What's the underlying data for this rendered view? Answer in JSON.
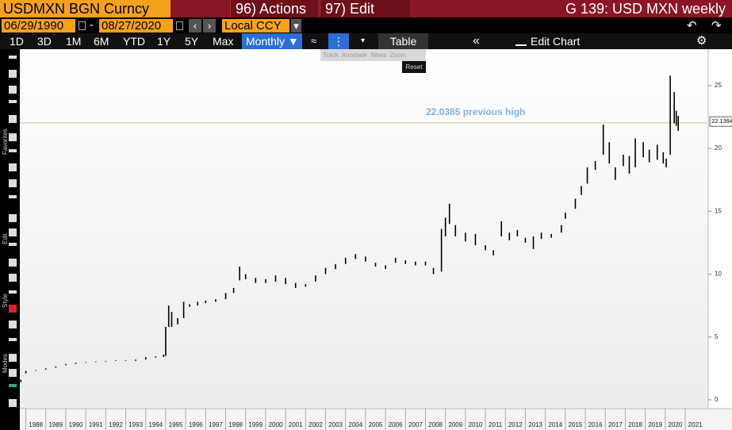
{
  "header": {
    "ticker": "USDMXN BGN Curncy",
    "actions": "96) Actions",
    "edit": "97) Edit",
    "title": "G 139: USD MXN weekly"
  },
  "toolbar": {
    "start_date": "06/29/1990",
    "separator": "-",
    "end_date": "08/27/2020",
    "currency": "Local CCY",
    "ranges": [
      "1D",
      "3D",
      "1M",
      "6M",
      "YTD",
      "1Y",
      "5Y",
      "Max"
    ],
    "frequency": "Monthly ▼",
    "table": "Table",
    "edit_chart": "Edit Chart"
  },
  "popup": {
    "items": [
      "Track",
      "Annotate",
      "News",
      "Zoom"
    ],
    "reset": "Reset"
  },
  "side_labels": [
    "Favorites",
    "Edit",
    "Style",
    "Modes"
  ],
  "chart_data": {
    "type": "ohlc",
    "color": "#000000",
    "x": [
      1987.75,
      1988.0,
      1988.5,
      1989.0,
      1989.5,
      1990.0,
      1990.5,
      1991.0,
      1991.5,
      1992.0,
      1992.5,
      1993.0,
      1993.5,
      1994.0,
      1994.5,
      1994.9,
      1995.0,
      1995.15,
      1995.3,
      1995.6,
      1995.9,
      1996.2,
      1996.6,
      1997.0,
      1997.5,
      1998.0,
      1998.4,
      1998.7,
      1999.0,
      1999.5,
      2000.0,
      2000.5,
      2001.0,
      2001.5,
      2002.0,
      2002.5,
      2003.0,
      2003.5,
      2004.0,
      2004.5,
      2005.0,
      2005.5,
      2006.0,
      2006.5,
      2007.0,
      2007.5,
      2008.0,
      2008.4,
      2008.8,
      2009.0,
      2009.2,
      2009.5,
      2010.0,
      2010.5,
      2011.0,
      2011.4,
      2011.8,
      2012.2,
      2012.6,
      2013.0,
      2013.4,
      2013.8,
      2014.3,
      2014.8,
      2015.0,
      2015.5,
      2015.8,
      2016.1,
      2016.5,
      2016.9,
      2017.2,
      2017.5,
      2017.9,
      2018.2,
      2018.5,
      2018.9,
      2019.2,
      2019.6,
      2019.9,
      2020.05,
      2020.25,
      2020.45,
      2020.55,
      2020.65
    ],
    "high": [
      1.6,
      2.3,
      2.35,
      2.5,
      2.65,
      2.85,
      2.95,
      3.0,
      3.05,
      3.1,
      3.15,
      3.15,
      3.2,
      3.4,
      3.45,
      3.6,
      5.8,
      7.5,
      7.0,
      6.5,
      7.8,
      7.6,
      7.8,
      7.9,
      8.0,
      8.5,
      8.9,
      10.6,
      10.0,
      9.7,
      9.6,
      9.9,
      9.7,
      9.3,
      9.2,
      9.9,
      10.5,
      10.8,
      11.3,
      11.6,
      11.4,
      10.9,
      10.7,
      11.3,
      11.1,
      11.0,
      11.0,
      10.5,
      13.6,
      14.5,
      15.6,
      13.9,
      13.3,
      13.2,
      12.3,
      11.9,
      14.2,
      13.3,
      13.5,
      12.9,
      13.0,
      13.3,
      13.2,
      13.9,
      14.9,
      16.0,
      17.0,
      18.5,
      19.0,
      21.9,
      20.5,
      18.5,
      19.5,
      19.4,
      20.8,
      20.5,
      19.9,
      20.3,
      19.7,
      19.2,
      25.8,
      24.5,
      23.0,
      22.6
    ],
    "low": [
      1.4,
      2.1,
      2.3,
      2.4,
      2.55,
      2.75,
      2.85,
      2.95,
      3.0,
      3.05,
      3.1,
      3.1,
      3.1,
      3.2,
      3.35,
      3.4,
      3.5,
      5.8,
      5.8,
      6.0,
      6.5,
      7.4,
      7.5,
      7.7,
      7.8,
      8.0,
      8.5,
      9.5,
      9.6,
      9.3,
      9.3,
      9.4,
      9.2,
      8.9,
      9.0,
      9.4,
      10.0,
      10.4,
      10.8,
      11.2,
      11.0,
      10.6,
      10.4,
      10.9,
      10.8,
      10.7,
      10.7,
      10.0,
      10.2,
      13.0,
      14.0,
      13.0,
      12.6,
      12.3,
      11.9,
      11.5,
      13.0,
      12.7,
      13.0,
      12.5,
      12.0,
      12.8,
      12.9,
      13.3,
      14.4,
      15.2,
      16.3,
      17.2,
      18.3,
      19.5,
      18.8,
      17.5,
      18.6,
      18.0,
      18.5,
      19.3,
      18.9,
      19.1,
      18.8,
      18.5,
      19.5,
      22.0,
      21.8,
      21.4
    ],
    "xlim": [
      1987.7,
      2022.15
    ],
    "xticks": [
      1988,
      1989,
      1990,
      1991,
      1992,
      1993,
      1994,
      1995,
      1996,
      1997,
      1998,
      1999,
      2000,
      2001,
      2002,
      2003,
      2004,
      2005,
      2006,
      2007,
      2008,
      2009,
      2010,
      2011,
      2012,
      2013,
      2014,
      2015,
      2016,
      2017,
      2018,
      2019,
      2020,
      2021
    ],
    "ylim": [
      -0.7,
      27.9
    ],
    "yticks": [
      0,
      5,
      10,
      15,
      20,
      25
    ],
    "last_price": 22.1394,
    "reference": {
      "value": 22.0385,
      "label": "22.0385 previous high",
      "color": "#c9c98f",
      "label_color": "#7eb3e3"
    }
  }
}
